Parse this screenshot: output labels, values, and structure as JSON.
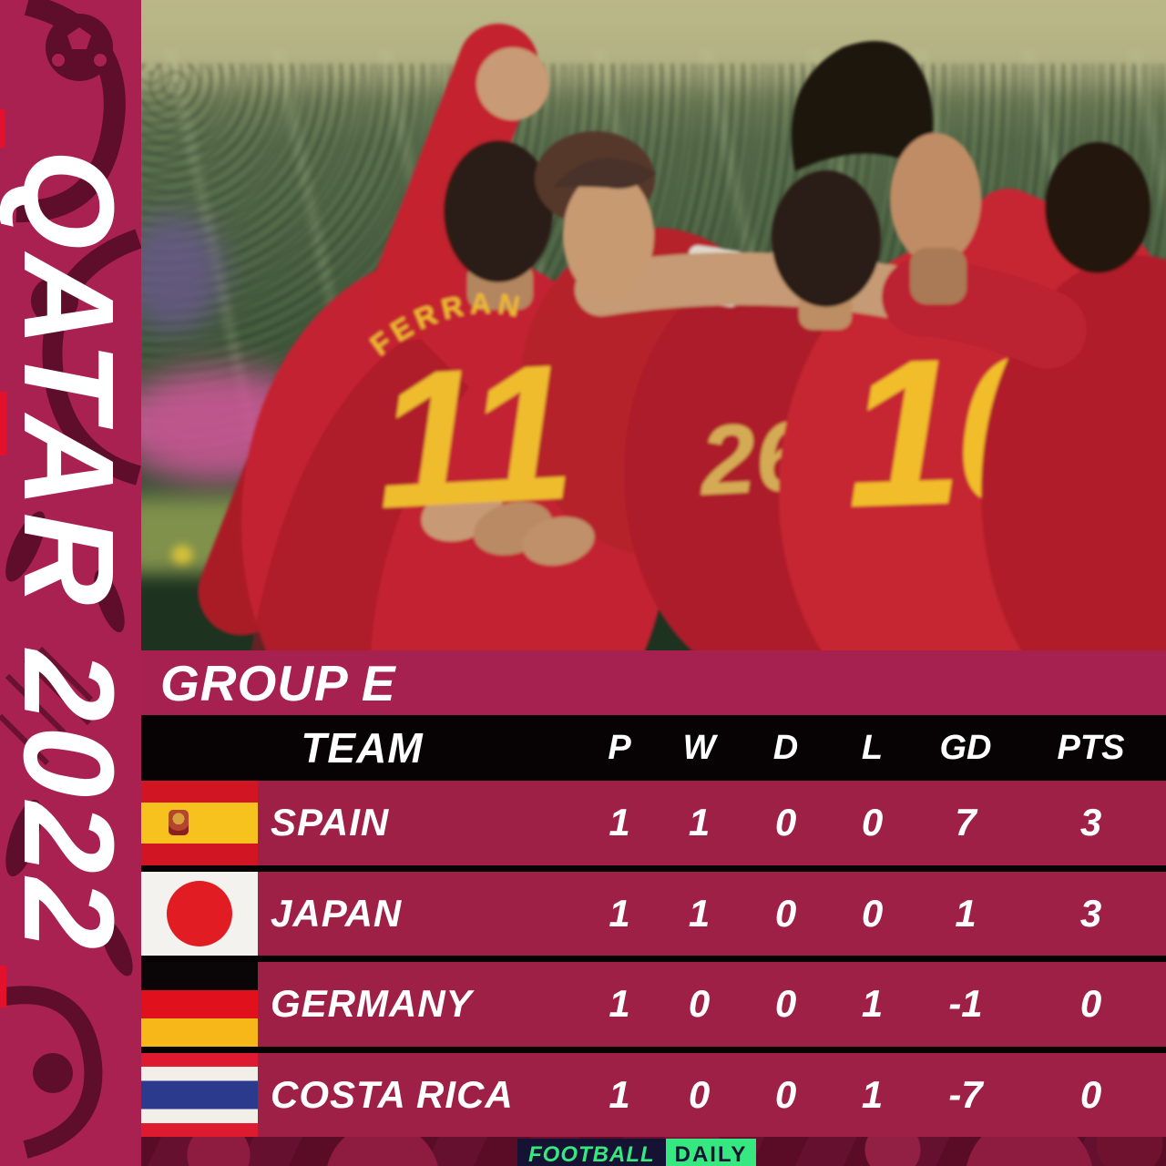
{
  "colors": {
    "band_crimson": "#a62150",
    "row_crimson": "#9e2046",
    "sidebar_crimson": "#a82150",
    "pattern_dark": "#5e0e2a",
    "black": "#070304",
    "jersey_yellow": "#f0bc2e",
    "logo_green": "#35e87f",
    "logo_navy": "#161233"
  },
  "sidebar": {
    "vertical_text": "QATAR 2022"
  },
  "photo": {
    "description": "Spain players celebrating a goal in red jerseys",
    "jersey_name": "FERRAN",
    "jersey_numbers": [
      "11",
      "26",
      "10"
    ]
  },
  "table": {
    "group_title": "GROUP E",
    "team_column_label": "TEAM",
    "stat_columns": [
      "P",
      "W",
      "D",
      "L",
      "GD",
      "PTS"
    ],
    "rows": [
      {
        "team": "SPAIN",
        "flag": "spain",
        "stats": [
          "1",
          "1",
          "0",
          "0",
          "7",
          "3"
        ]
      },
      {
        "team": "JAPAN",
        "flag": "japan",
        "stats": [
          "1",
          "1",
          "0",
          "0",
          "1",
          "3"
        ]
      },
      {
        "team": "GERMANY",
        "flag": "germany",
        "stats": [
          "1",
          "0",
          "0",
          "1",
          "-1",
          "0"
        ]
      },
      {
        "team": "COSTA RICA",
        "flag": "costa-rica",
        "stats": [
          "1",
          "0",
          "0",
          "1",
          "-7",
          "0"
        ]
      }
    ]
  },
  "chart_data": {
    "type": "table",
    "title": "GROUP E",
    "columns": [
      "TEAM",
      "P",
      "W",
      "D",
      "L",
      "GD",
      "PTS"
    ],
    "rows": [
      [
        "SPAIN",
        1,
        1,
        0,
        0,
        7,
        3
      ],
      [
        "JAPAN",
        1,
        1,
        0,
        0,
        1,
        3
      ],
      [
        "GERMANY",
        1,
        0,
        0,
        1,
        -1,
        0
      ],
      [
        "COSTA RICA",
        1,
        0,
        0,
        1,
        -7,
        0
      ]
    ]
  },
  "footer": {
    "brand_left": "FOOTBALL",
    "brand_right": "DAILY"
  }
}
